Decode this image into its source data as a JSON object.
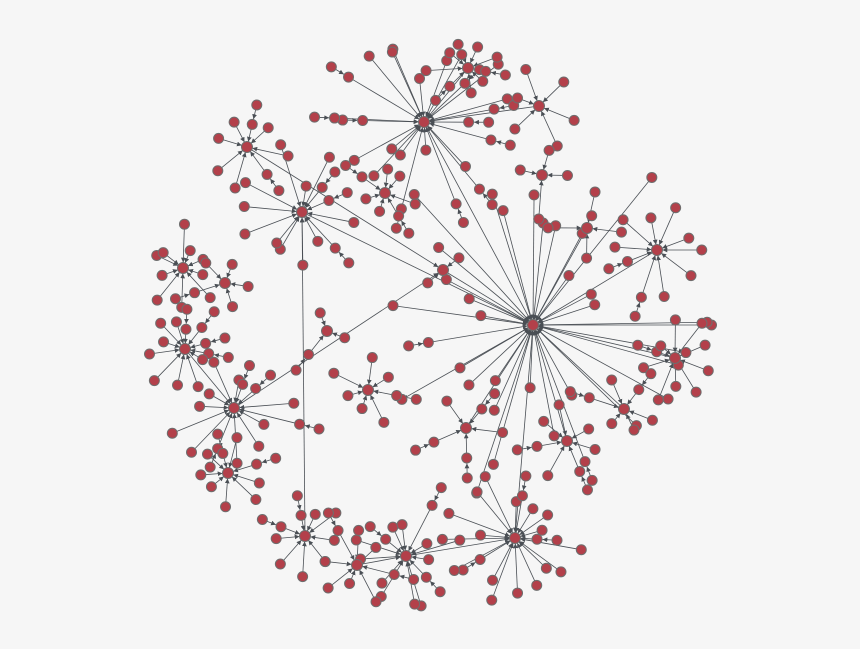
{
  "graph": {
    "directed": true,
    "colors": {
      "background": "#f6f6f6",
      "node_fill": "#b3404a",
      "node_stroke": "#6e6e6e",
      "edge": "#4a4f55"
    },
    "clusters": [
      {
        "id": "main",
        "leaves": 34
      },
      {
        "id": "c1",
        "leaves": 24,
        "parent": "main"
      },
      {
        "id": "c2",
        "leaves": 14,
        "parent": "main"
      },
      {
        "id": "c3",
        "leaves": 14,
        "parent": "c12"
      },
      {
        "id": "c4",
        "leaves": 20,
        "parent": "main"
      },
      {
        "id": "c5",
        "leaves": 14,
        "parent": "c4"
      },
      {
        "id": "c6",
        "leaves": 10
      },
      {
        "id": "c7",
        "leaves": 12,
        "parent": "c3"
      },
      {
        "id": "c8",
        "leaves": 10,
        "parent": "main"
      },
      {
        "id": "c9",
        "leaves": 10,
        "parent": "main"
      },
      {
        "id": "c10",
        "leaves": 8,
        "parent": "c12"
      },
      {
        "id": "c11",
        "leaves": 7
      },
      {
        "id": "c12",
        "leaves": 6,
        "parent": "main"
      },
      {
        "id": "c13",
        "leaves": 5,
        "parent": "main"
      },
      {
        "id": "c14",
        "leaves": 7,
        "parent": "main"
      },
      {
        "id": "c15",
        "leaves": 6,
        "parent": "main"
      },
      {
        "id": "c16",
        "leaves": 9,
        "parent": "c2"
      },
      {
        "id": "c17",
        "leaves": 8,
        "parent": "c5"
      },
      {
        "id": "c18",
        "leaves": 9
      },
      {
        "id": "c19",
        "leaves": 7
      },
      {
        "id": "c20",
        "leaves": 9,
        "parent": "c1"
      },
      {
        "id": "c21",
        "leaves": 6,
        "parent": "c1"
      },
      {
        "id": "c22",
        "leaves": 4,
        "parent": "main"
      },
      {
        "id": "c23",
        "leaves": 3
      },
      {
        "id": "c24",
        "leaves": 5
      },
      {
        "id": "c25",
        "leaves": 4
      }
    ]
  }
}
